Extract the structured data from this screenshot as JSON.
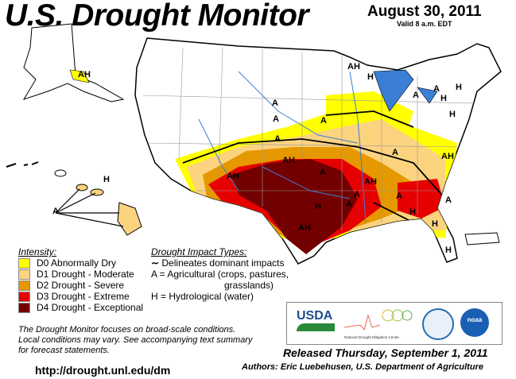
{
  "header": {
    "title": "U.S. Drought Monitor",
    "date": "August 30, 2011",
    "valid": "Valid 8 a.m. EDT"
  },
  "legend": {
    "intensity_title": "Intensity:",
    "items": [
      {
        "label": "D0 Abnormally Dry",
        "color": "#ffff00"
      },
      {
        "label": "D1 Drought - Moderate",
        "color": "#fcd37f"
      },
      {
        "label": "D2 Drought - Severe",
        "color": "#e69800"
      },
      {
        "label": "D3 Drought - Extreme",
        "color": "#e60000"
      },
      {
        "label": "D4 Drought - Exceptional",
        "color": "#730000"
      }
    ],
    "impact_title": "Drought Impact Types:",
    "impact_line": "Delineates dominant impacts",
    "impact_a": "A = Agricultural (crops, pastures,",
    "impact_a2": "grasslands)",
    "impact_h": "H = Hydrological (water)"
  },
  "map_labels": [
    "AH",
    "A",
    "A",
    "A",
    "AH",
    "H",
    "H",
    "A",
    "H",
    "H",
    "A",
    "A",
    "A",
    "AH",
    "AH",
    "A",
    "A",
    "AH",
    "A",
    "AH",
    "H",
    "A",
    "H",
    "A",
    "H",
    "AH",
    "A",
    "H",
    "H"
  ],
  "note": [
    "The Drought Monitor focuses on broad-scale conditions.",
    "Local conditions may vary. See accompanying text summary",
    "for forecast statements."
  ],
  "url": "http://drought.unl.edu/dm",
  "logos": {
    "usda": "USDA",
    "ndmc": "National Drought Mitigation Center",
    "noaa": "noaa"
  },
  "footer": {
    "released": "Released Thursday, September 1, 2011",
    "authors": "Authors: Eric Luebehusen, U.S. Department of Agriculture"
  }
}
